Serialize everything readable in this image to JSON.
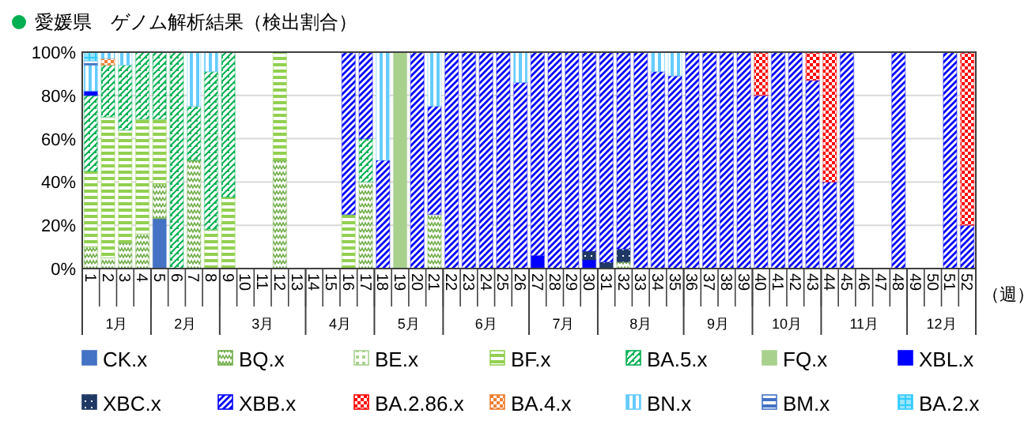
{
  "chart_data": {
    "type": "bar",
    "stacked": true,
    "title": "愛媛県　ゲノム解析結果（検出割合）",
    "xlabel": "（週）",
    "categories": [
      "1",
      "2",
      "3",
      "4",
      "5",
      "6",
      "7",
      "8",
      "9",
      "10",
      "11",
      "12",
      "13",
      "14",
      "15",
      "16",
      "17",
      "18",
      "19",
      "20",
      "21",
      "22",
      "23",
      "24",
      "25",
      "26",
      "27",
      "28",
      "29",
      "30",
      "31",
      "32",
      "33",
      "34",
      "35",
      "36",
      "37",
      "38",
      "39",
      "40",
      "41",
      "42",
      "43",
      "44",
      "45",
      "46",
      "47",
      "48",
      "49",
      "50",
      "51",
      "52"
    ],
    "ylim": [
      0,
      100
    ],
    "yticks": [
      {
        "value": 0,
        "label": "0%"
      },
      {
        "value": 20,
        "label": "20%"
      },
      {
        "value": 40,
        "label": "40%"
      },
      {
        "value": 60,
        "label": "60%"
      },
      {
        "value": 80,
        "label": "80%"
      },
      {
        "value": 100,
        "label": "100%"
      }
    ],
    "grid": "y",
    "legend": "bottom",
    "annotations": [
      "1月",
      "2月",
      "3月",
      "4月",
      "5月",
      "6月",
      "7月",
      "8月",
      "9月",
      "10月",
      "11月",
      "12月"
    ],
    "series": [
      {
        "name": "CK.x",
        "color": "#4472c4",
        "values": [
          null,
          null,
          null,
          null,
          23,
          null,
          null,
          null,
          null,
          null,
          null,
          null,
          null,
          null,
          null,
          null,
          null,
          null,
          null,
          null,
          null,
          null,
          null,
          null,
          null,
          null,
          null,
          null,
          null,
          null,
          null,
          null,
          null,
          null,
          null,
          null,
          null,
          null,
          null,
          null,
          null,
          null,
          null,
          null,
          null,
          null,
          null,
          null,
          null,
          null,
          null,
          null
        ]
      },
      {
        "name": "BQ.x",
        "color": "#70ad47",
        "values": [
          10,
          5,
          12,
          16,
          16,
          null,
          50,
          null,
          null,
          null,
          null,
          50,
          null,
          null,
          null,
          null,
          40,
          null,
          null,
          null,
          25,
          null,
          null,
          null,
          null,
          null,
          null,
          null,
          null,
          null,
          null,
          3,
          null,
          null,
          null,
          null,
          null,
          null,
          null,
          null,
          null,
          null,
          null,
          null,
          null,
          null,
          null,
          null,
          null,
          null,
          null,
          null
        ]
      },
      {
        "name": "BE.x",
        "color": "#a9d18e",
        "values": [
          null,
          null,
          null,
          null,
          null,
          null,
          null,
          null,
          null,
          null,
          null,
          null,
          null,
          null,
          null,
          null,
          null,
          null,
          null,
          null,
          null,
          null,
          null,
          null,
          null,
          null,
          null,
          null,
          null,
          null,
          null,
          null,
          null,
          null,
          null,
          null,
          null,
          null,
          null,
          null,
          null,
          null,
          null,
          null,
          null,
          null,
          null,
          null,
          null,
          null,
          null,
          null
        ]
      },
      {
        "name": "BF.x",
        "color": "#92d050",
        "values": [
          35,
          65,
          52,
          53,
          30,
          null,
          null,
          18,
          33,
          null,
          null,
          50,
          null,
          null,
          null,
          25,
          null,
          null,
          null,
          null,
          null,
          null,
          null,
          null,
          null,
          null,
          null,
          null,
          null,
          null,
          null,
          null,
          null,
          null,
          null,
          null,
          null,
          null,
          null,
          null,
          null,
          null,
          null,
          null,
          null,
          null,
          null,
          null,
          null,
          null,
          null,
          null
        ]
      },
      {
        "name": "BA.5.x",
        "color": "#00b050",
        "values": [
          35,
          24,
          30,
          31,
          31,
          100,
          25,
          73,
          67,
          null,
          null,
          null,
          null,
          null,
          null,
          null,
          20,
          null,
          null,
          null,
          null,
          null,
          null,
          null,
          null,
          null,
          null,
          null,
          null,
          null,
          null,
          null,
          null,
          null,
          null,
          null,
          null,
          null,
          null,
          null,
          null,
          null,
          null,
          null,
          null,
          null,
          null,
          null,
          null,
          null,
          null,
          null
        ]
      },
      {
        "name": "FQ.x",
        "color": "#a9d18e",
        "values": [
          null,
          null,
          null,
          null,
          null,
          null,
          null,
          null,
          null,
          null,
          null,
          null,
          null,
          null,
          null,
          null,
          null,
          null,
          100,
          null,
          null,
          null,
          null,
          null,
          null,
          null,
          null,
          null,
          null,
          null,
          null,
          null,
          null,
          null,
          null,
          null,
          null,
          null,
          null,
          null,
          null,
          null,
          null,
          null,
          null,
          null,
          null,
          null,
          null,
          null,
          null,
          null
        ]
      },
      {
        "name": "XBL.x",
        "color": "#0000ff",
        "values": [
          2,
          null,
          null,
          null,
          null,
          null,
          null,
          null,
          null,
          null,
          null,
          null,
          null,
          null,
          null,
          null,
          null,
          null,
          null,
          null,
          null,
          null,
          null,
          null,
          null,
          null,
          6,
          null,
          null,
          4,
          null,
          null,
          null,
          null,
          null,
          null,
          null,
          null,
          null,
          null,
          null,
          null,
          null,
          null,
          null,
          null,
          null,
          null,
          null,
          null,
          null,
          null
        ]
      },
      {
        "name": "XBC.x",
        "color": "#1f3864",
        "values": [
          null,
          null,
          null,
          null,
          null,
          null,
          null,
          null,
          null,
          null,
          null,
          null,
          null,
          null,
          null,
          null,
          null,
          null,
          null,
          null,
          null,
          null,
          null,
          null,
          null,
          null,
          null,
          null,
          null,
          4,
          3,
          6,
          null,
          null,
          null,
          null,
          null,
          null,
          null,
          null,
          null,
          null,
          null,
          null,
          null,
          null,
          null,
          null,
          null,
          null,
          null,
          null
        ]
      },
      {
        "name": "XBB.x",
        "color": "#0000ff",
        "values": [
          null,
          null,
          null,
          null,
          null,
          null,
          null,
          null,
          null,
          null,
          null,
          null,
          null,
          null,
          null,
          75,
          40,
          50,
          null,
          100,
          50,
          100,
          100,
          100,
          100,
          86,
          94,
          100,
          100,
          92,
          97,
          91,
          100,
          91,
          89,
          100,
          100,
          100,
          100,
          80,
          100,
          100,
          87,
          40,
          100,
          null,
          null,
          100,
          null,
          null,
          100,
          20
        ]
      },
      {
        "name": "BA.2.86.x",
        "color": "#ff0000",
        "values": [
          null,
          null,
          null,
          null,
          null,
          null,
          null,
          null,
          null,
          null,
          null,
          null,
          null,
          null,
          null,
          null,
          null,
          null,
          null,
          null,
          null,
          null,
          null,
          null,
          null,
          null,
          null,
          null,
          null,
          null,
          null,
          null,
          null,
          null,
          null,
          null,
          null,
          null,
          null,
          20,
          null,
          null,
          13,
          60,
          null,
          null,
          null,
          null,
          null,
          null,
          null,
          80
        ]
      },
      {
        "name": "BA.4.x",
        "color": "#ed7d31",
        "values": [
          null,
          3,
          null,
          null,
          null,
          null,
          null,
          null,
          null,
          null,
          null,
          null,
          null,
          null,
          null,
          null,
          null,
          null,
          null,
          null,
          null,
          null,
          null,
          null,
          null,
          null,
          null,
          null,
          null,
          null,
          null,
          null,
          null,
          null,
          null,
          null,
          null,
          null,
          null,
          null,
          null,
          null,
          null,
          null,
          null,
          null,
          null,
          null,
          null,
          null,
          null,
          null
        ]
      },
      {
        "name": "BN.x",
        "color": "#66ccff",
        "values": [
          12,
          3,
          6,
          null,
          null,
          null,
          25,
          9,
          null,
          null,
          null,
          null,
          null,
          null,
          null,
          null,
          null,
          50,
          null,
          null,
          25,
          null,
          null,
          null,
          null,
          14,
          null,
          null,
          null,
          null,
          null,
          null,
          null,
          9,
          11,
          null,
          null,
          null,
          null,
          null,
          null,
          null,
          null,
          null,
          null,
          null,
          null,
          null,
          null,
          null,
          null,
          null
        ]
      },
      {
        "name": "BM.x",
        "color": "#4472c4",
        "values": [
          2,
          null,
          null,
          null,
          null,
          null,
          null,
          null,
          null,
          null,
          null,
          null,
          null,
          null,
          null,
          null,
          null,
          null,
          null,
          null,
          null,
          null,
          null,
          null,
          null,
          null,
          null,
          null,
          null,
          null,
          null,
          null,
          null,
          null,
          null,
          null,
          null,
          null,
          null,
          null,
          null,
          null,
          null,
          null,
          null,
          null,
          null,
          null,
          null,
          null,
          null,
          null
        ]
      },
      {
        "name": "BA.2.x",
        "color": "#33ccff",
        "values": [
          4,
          null,
          null,
          null,
          null,
          null,
          null,
          null,
          null,
          null,
          null,
          null,
          null,
          null,
          null,
          null,
          null,
          null,
          null,
          null,
          null,
          null,
          null,
          null,
          null,
          null,
          null,
          null,
          null,
          null,
          null,
          null,
          null,
          null,
          null,
          null,
          null,
          null,
          null,
          null,
          null,
          null,
          null,
          null,
          null,
          null,
          null,
          null,
          null,
          null,
          null,
          null
        ]
      }
    ]
  }
}
